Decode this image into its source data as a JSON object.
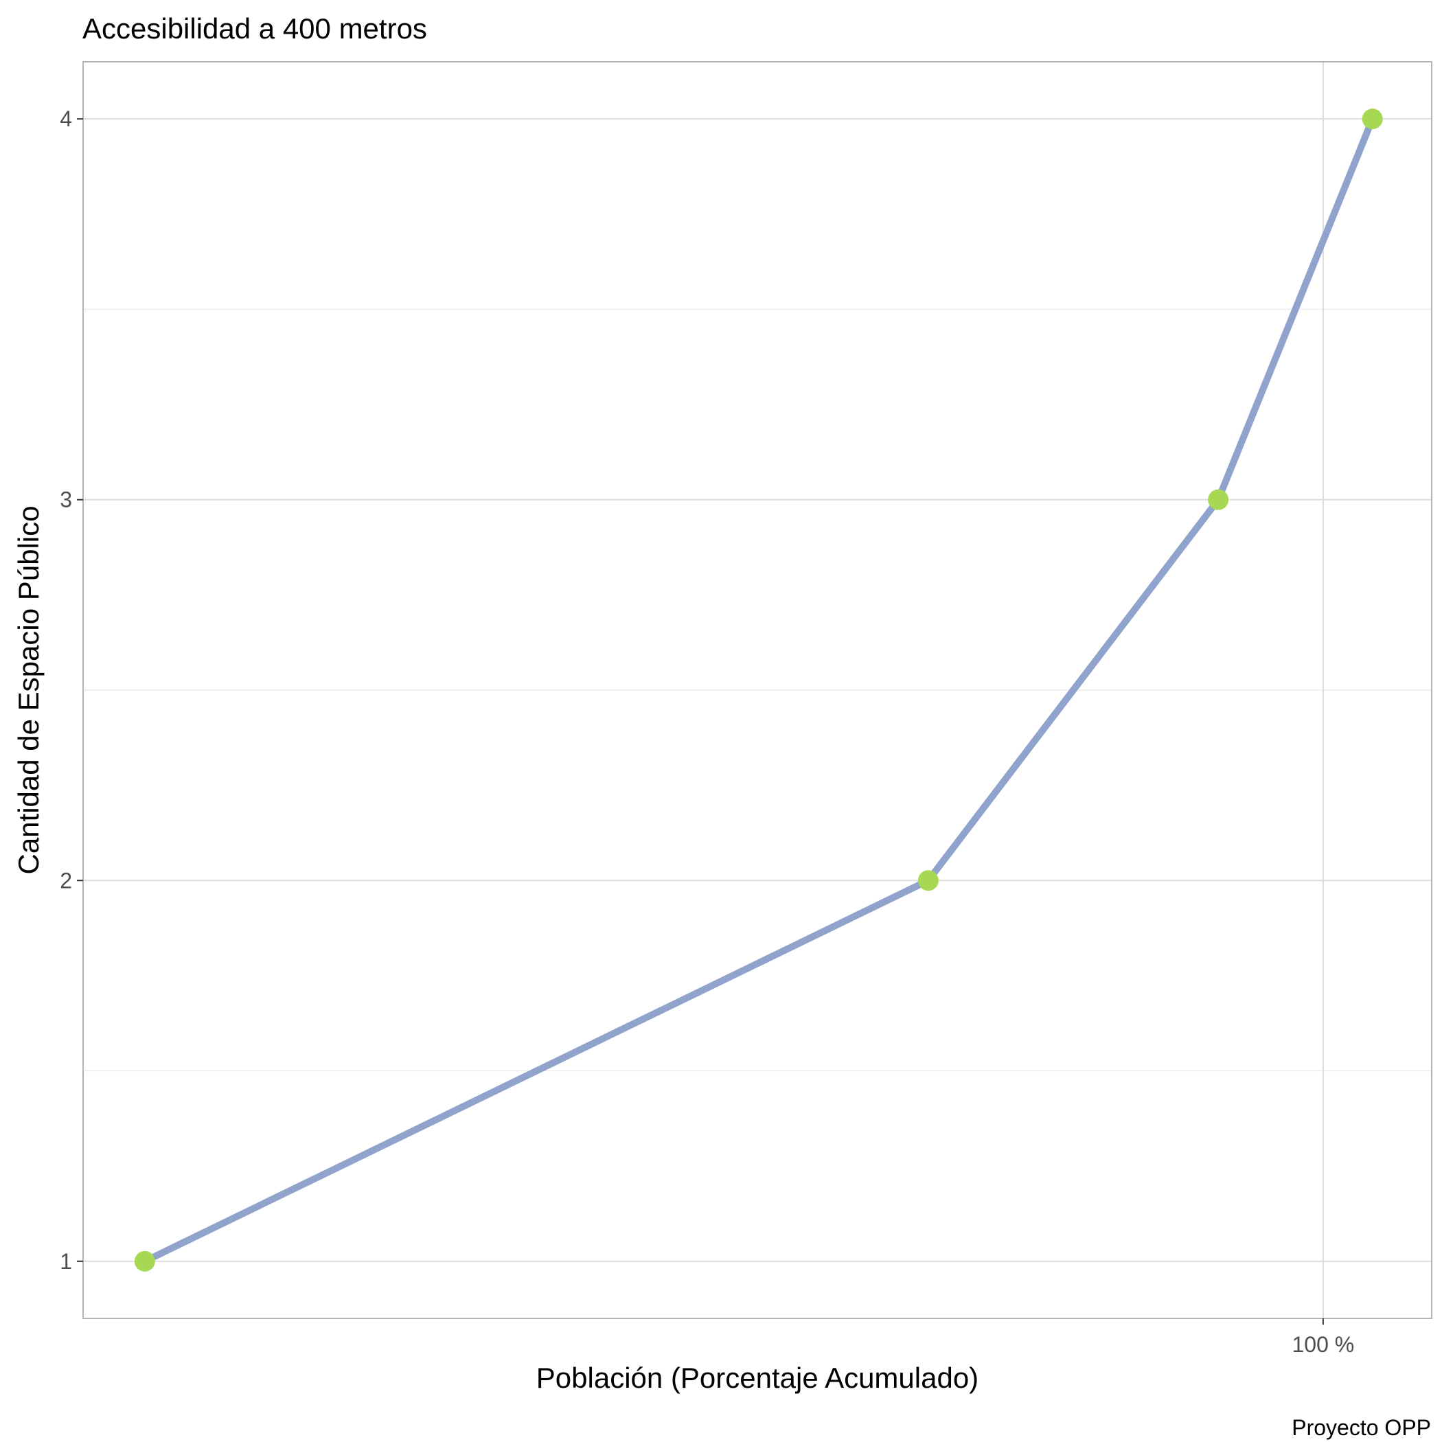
{
  "chart_data": {
    "type": "line",
    "title": "Accesibilidad a 400 metros",
    "xlabel": "Población (Porcentaje Acumulado)",
    "ylabel": "Cantidad de Espacio Público",
    "caption": "Proyecto OPP",
    "x_ticks": [
      {
        "value": 100,
        "label": "100 %"
      }
    ],
    "y_ticks": [
      1,
      2,
      3,
      4
    ],
    "x": [
      4.5,
      68.0,
      91.5,
      104.0
    ],
    "y": [
      1,
      2,
      3,
      4
    ],
    "xlim": [
      -0.5,
      108.8
    ],
    "ylim": [
      0.85,
      4.15
    ],
    "grid": true,
    "legend": "none",
    "colors": {
      "line": "#8fa3cc",
      "points": "#a6d854",
      "panel_border": "#b3b3b3",
      "grid": "#dedede"
    }
  }
}
